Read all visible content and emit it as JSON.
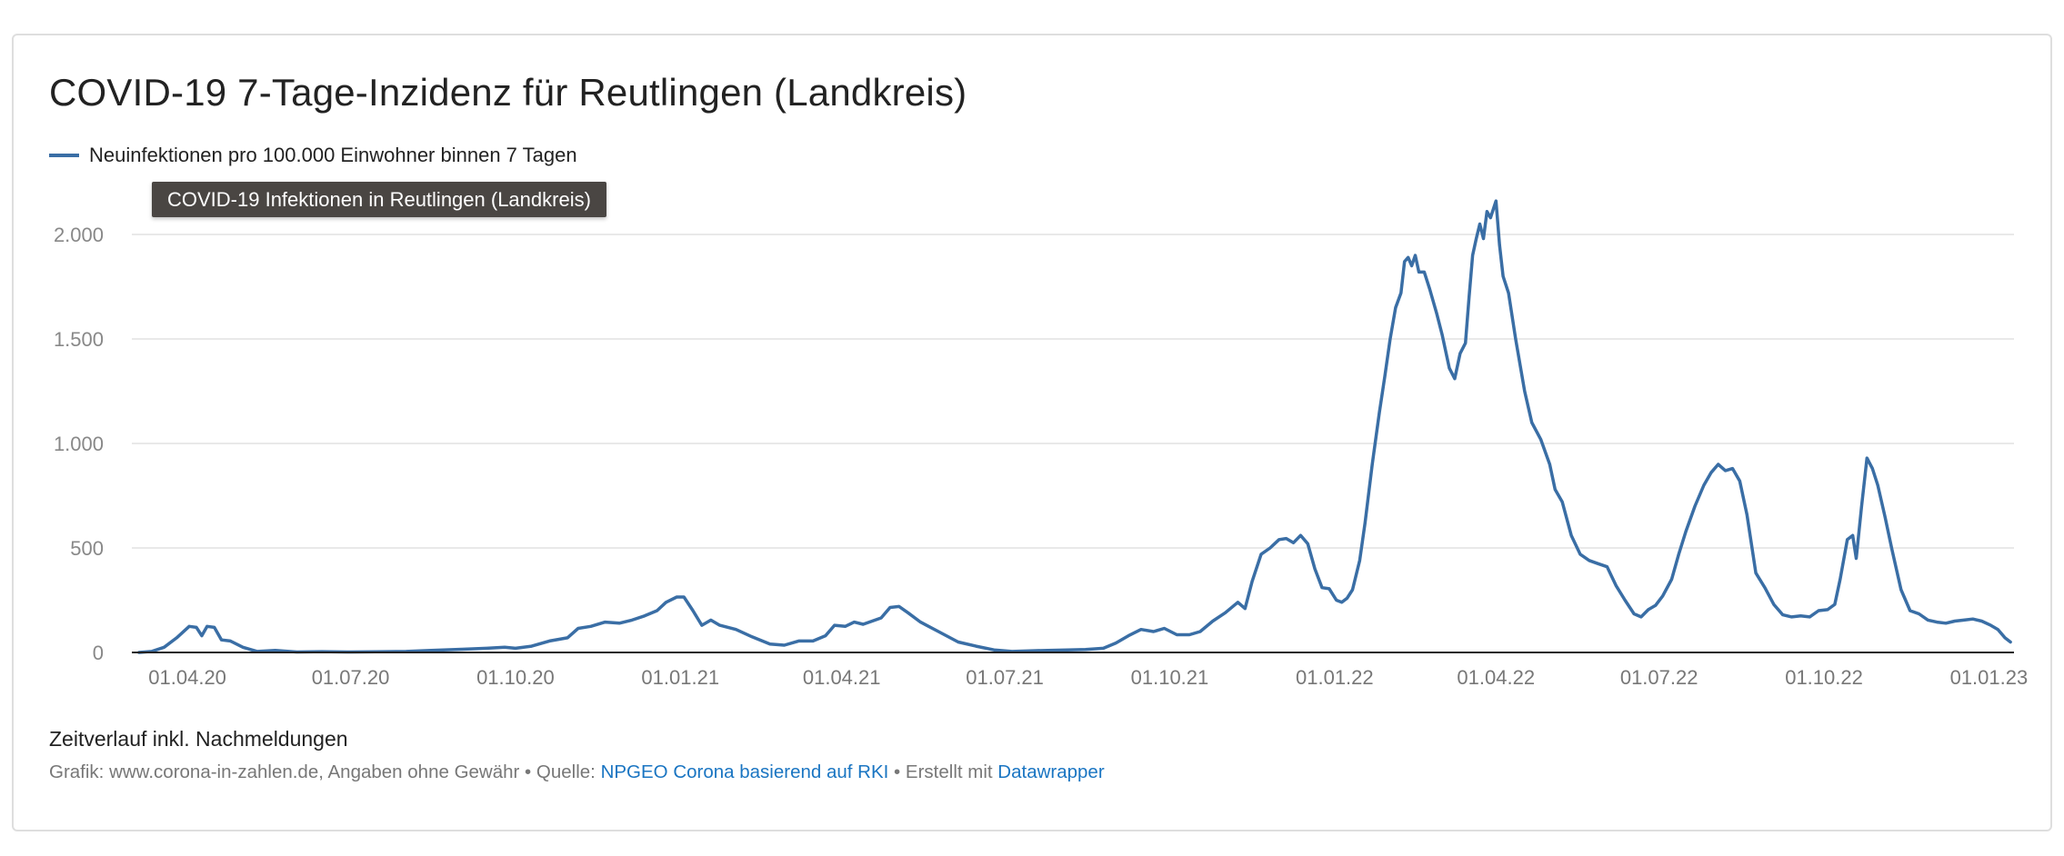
{
  "title": "COVID-19 7-Tage-Inzidenz für Reutlingen (Landkreis)",
  "legend_label": "Neuinfektionen pro 100.000 Einwohner binnen 7 Tagen",
  "tooltip": "COVID-19 Infektionen in Reutlingen (Landkreis)",
  "note": "Zeitverlauf inkl. Nachmeldungen",
  "footer": {
    "prefix": "Grafik: www.corona-in-zahlen.de, Angaben ohne Gewähr • Quelle: ",
    "source_link": "NPGEO Corona basierend auf RKI",
    "middle": " • Erstellt mit ",
    "tool_link": "Datawrapper"
  },
  "colors": {
    "line": "#3a6ea5",
    "grid": "#e2e2e2",
    "baseline": "#222222",
    "link": "#1a75c2"
  },
  "chart_data": {
    "type": "line",
    "title": "COVID-19 7-Tage-Inzidenz für Reutlingen (Landkreis)",
    "xlabel": "",
    "ylabel": "",
    "x_domain": [
      "2020-03-01",
      "2023-01-15"
    ],
    "ylim": [
      0,
      2000
    ],
    "y_ticks": [
      0,
      500,
      1000,
      1500,
      2000
    ],
    "y_tick_labels": [
      "0",
      "500",
      "1.000",
      "1.500",
      "2.000"
    ],
    "x_ticks": [
      "2020-04-01",
      "2020-07-01",
      "2020-10-01",
      "2021-01-01",
      "2021-04-01",
      "2021-07-01",
      "2021-10-01",
      "2022-01-01",
      "2022-04-01",
      "2022-07-01",
      "2022-10-01",
      "2023-01-01"
    ],
    "x_tick_labels": [
      "01.04.20",
      "01.07.20",
      "01.10.20",
      "01.01.21",
      "01.04.21",
      "01.07.21",
      "01.10.21",
      "01.01.22",
      "01.04.22",
      "01.07.22",
      "01.10.22",
      "01.01.23"
    ],
    "grid": true,
    "legend_position": "top-left",
    "series": [
      {
        "name": "Neuinfektionen pro 100.000 Einwohner binnen 7 Tagen",
        "points": [
          [
            "2020-03-05",
            0
          ],
          [
            "2020-03-12",
            5
          ],
          [
            "2020-03-19",
            25
          ],
          [
            "2020-03-26",
            70
          ],
          [
            "2020-04-02",
            125
          ],
          [
            "2020-04-06",
            120
          ],
          [
            "2020-04-09",
            80
          ],
          [
            "2020-04-12",
            125
          ],
          [
            "2020-04-16",
            120
          ],
          [
            "2020-04-20",
            60
          ],
          [
            "2020-04-25",
            55
          ],
          [
            "2020-05-02",
            25
          ],
          [
            "2020-05-10",
            5
          ],
          [
            "2020-05-20",
            10
          ],
          [
            "2020-06-01",
            2
          ],
          [
            "2020-06-15",
            4
          ],
          [
            "2020-07-01",
            2
          ],
          [
            "2020-07-15",
            3
          ],
          [
            "2020-08-01",
            5
          ],
          [
            "2020-08-15",
            10
          ],
          [
            "2020-09-01",
            15
          ],
          [
            "2020-09-15",
            20
          ],
          [
            "2020-09-25",
            25
          ],
          [
            "2020-10-01",
            20
          ],
          [
            "2020-10-10",
            30
          ],
          [
            "2020-10-20",
            55
          ],
          [
            "2020-10-30",
            70
          ],
          [
            "2020-11-05",
            115
          ],
          [
            "2020-11-12",
            125
          ],
          [
            "2020-11-20",
            145
          ],
          [
            "2020-11-28",
            140
          ],
          [
            "2020-12-05",
            155
          ],
          [
            "2020-12-12",
            175
          ],
          [
            "2020-12-19",
            200
          ],
          [
            "2020-12-24",
            240
          ],
          [
            "2020-12-30",
            265
          ],
          [
            "2021-01-03",
            265
          ],
          [
            "2021-01-08",
            200
          ],
          [
            "2021-01-13",
            130
          ],
          [
            "2021-01-18",
            155
          ],
          [
            "2021-01-23",
            130
          ],
          [
            "2021-02-01",
            110
          ],
          [
            "2021-02-10",
            75
          ],
          [
            "2021-02-20",
            40
          ],
          [
            "2021-02-28",
            35
          ],
          [
            "2021-03-08",
            55
          ],
          [
            "2021-03-16",
            55
          ],
          [
            "2021-03-23",
            80
          ],
          [
            "2021-03-28",
            130
          ],
          [
            "2021-04-03",
            125
          ],
          [
            "2021-04-08",
            145
          ],
          [
            "2021-04-13",
            135
          ],
          [
            "2021-04-18",
            150
          ],
          [
            "2021-04-23",
            165
          ],
          [
            "2021-04-28",
            215
          ],
          [
            "2021-05-03",
            220
          ],
          [
            "2021-05-08",
            190
          ],
          [
            "2021-05-15",
            145
          ],
          [
            "2021-05-25",
            100
          ],
          [
            "2021-06-05",
            50
          ],
          [
            "2021-06-15",
            30
          ],
          [
            "2021-06-25",
            12
          ],
          [
            "2021-07-05",
            5
          ],
          [
            "2021-07-15",
            8
          ],
          [
            "2021-07-25",
            10
          ],
          [
            "2021-08-05",
            12
          ],
          [
            "2021-08-15",
            14
          ],
          [
            "2021-08-25",
            20
          ],
          [
            "2021-09-01",
            45
          ],
          [
            "2021-09-08",
            80
          ],
          [
            "2021-09-15",
            110
          ],
          [
            "2021-09-22",
            100
          ],
          [
            "2021-09-28",
            115
          ],
          [
            "2021-10-05",
            85
          ],
          [
            "2021-10-12",
            85
          ],
          [
            "2021-10-18",
            100
          ],
          [
            "2021-10-25",
            150
          ],
          [
            "2021-11-01",
            190
          ],
          [
            "2021-11-08",
            240
          ],
          [
            "2021-11-12",
            210
          ],
          [
            "2021-11-16",
            340
          ],
          [
            "2021-11-21",
            470
          ],
          [
            "2021-11-26",
            500
          ],
          [
            "2021-12-01",
            540
          ],
          [
            "2021-12-05",
            545
          ],
          [
            "2021-12-09",
            525
          ],
          [
            "2021-12-13",
            560
          ],
          [
            "2021-12-17",
            520
          ],
          [
            "2021-12-21",
            400
          ],
          [
            "2021-12-25",
            310
          ],
          [
            "2021-12-29",
            305
          ],
          [
            "2022-01-02",
            250
          ],
          [
            "2022-01-05",
            240
          ],
          [
            "2022-01-08",
            260
          ],
          [
            "2022-01-11",
            300
          ],
          [
            "2022-01-15",
            440
          ],
          [
            "2022-01-18",
            620
          ],
          [
            "2022-01-22",
            900
          ],
          [
            "2022-01-26",
            1150
          ],
          [
            "2022-01-29",
            1320
          ],
          [
            "2022-02-01",
            1500
          ],
          [
            "2022-02-04",
            1650
          ],
          [
            "2022-02-07",
            1720
          ],
          [
            "2022-02-09",
            1870
          ],
          [
            "2022-02-11",
            1890
          ],
          [
            "2022-02-13",
            1850
          ],
          [
            "2022-02-15",
            1900
          ],
          [
            "2022-02-17",
            1820
          ],
          [
            "2022-02-20",
            1820
          ],
          [
            "2022-02-23",
            1740
          ],
          [
            "2022-02-27",
            1620
          ],
          [
            "2022-03-02",
            1520
          ],
          [
            "2022-03-06",
            1360
          ],
          [
            "2022-03-09",
            1310
          ],
          [
            "2022-03-12",
            1430
          ],
          [
            "2022-03-15",
            1480
          ],
          [
            "2022-03-17",
            1700
          ],
          [
            "2022-03-19",
            1900
          ],
          [
            "2022-03-21",
            1980
          ],
          [
            "2022-03-23",
            2050
          ],
          [
            "2022-03-25",
            1980
          ],
          [
            "2022-03-27",
            2110
          ],
          [
            "2022-03-29",
            2080
          ],
          [
            "2022-04-01",
            2160
          ],
          [
            "2022-04-03",
            1950
          ],
          [
            "2022-04-05",
            1800
          ],
          [
            "2022-04-08",
            1720
          ],
          [
            "2022-04-12",
            1500
          ],
          [
            "2022-04-17",
            1250
          ],
          [
            "2022-04-21",
            1100
          ],
          [
            "2022-04-26",
            1020
          ],
          [
            "2022-05-01",
            900
          ],
          [
            "2022-05-04",
            780
          ],
          [
            "2022-05-08",
            720
          ],
          [
            "2022-05-13",
            560
          ],
          [
            "2022-05-18",
            470
          ],
          [
            "2022-05-23",
            440
          ],
          [
            "2022-05-28",
            425
          ],
          [
            "2022-06-02",
            410
          ],
          [
            "2022-06-07",
            320
          ],
          [
            "2022-06-12",
            250
          ],
          [
            "2022-06-17",
            185
          ],
          [
            "2022-06-21",
            170
          ],
          [
            "2022-06-25",
            205
          ],
          [
            "2022-06-29",
            225
          ],
          [
            "2022-07-03",
            270
          ],
          [
            "2022-07-08",
            350
          ],
          [
            "2022-07-12",
            470
          ],
          [
            "2022-07-16",
            580
          ],
          [
            "2022-07-21",
            700
          ],
          [
            "2022-07-26",
            800
          ],
          [
            "2022-07-30",
            860
          ],
          [
            "2022-08-03",
            900
          ],
          [
            "2022-08-07",
            870
          ],
          [
            "2022-08-11",
            880
          ],
          [
            "2022-08-15",
            820
          ],
          [
            "2022-08-19",
            660
          ],
          [
            "2022-08-24",
            380
          ],
          [
            "2022-08-29",
            310
          ],
          [
            "2022-09-03",
            230
          ],
          [
            "2022-09-08",
            180
          ],
          [
            "2022-09-13",
            170
          ],
          [
            "2022-09-18",
            175
          ],
          [
            "2022-09-23",
            170
          ],
          [
            "2022-09-28",
            200
          ],
          [
            "2022-10-03",
            205
          ],
          [
            "2022-10-07",
            230
          ],
          [
            "2022-10-10",
            350
          ],
          [
            "2022-10-14",
            540
          ],
          [
            "2022-10-17",
            560
          ],
          [
            "2022-10-19",
            450
          ],
          [
            "2022-10-22",
            700
          ],
          [
            "2022-10-25",
            930
          ],
          [
            "2022-10-28",
            880
          ],
          [
            "2022-10-31",
            800
          ],
          [
            "2022-11-04",
            650
          ],
          [
            "2022-11-08",
            490
          ],
          [
            "2022-11-13",
            300
          ],
          [
            "2022-11-18",
            200
          ],
          [
            "2022-11-23",
            185
          ],
          [
            "2022-11-28",
            155
          ],
          [
            "2022-12-03",
            145
          ],
          [
            "2022-12-08",
            140
          ],
          [
            "2022-12-13",
            150
          ],
          [
            "2022-12-18",
            155
          ],
          [
            "2022-12-23",
            160
          ],
          [
            "2022-12-28",
            150
          ],
          [
            "2023-01-02",
            130
          ],
          [
            "2023-01-06",
            110
          ],
          [
            "2023-01-10",
            70
          ],
          [
            "2023-01-13",
            50
          ]
        ]
      }
    ]
  }
}
